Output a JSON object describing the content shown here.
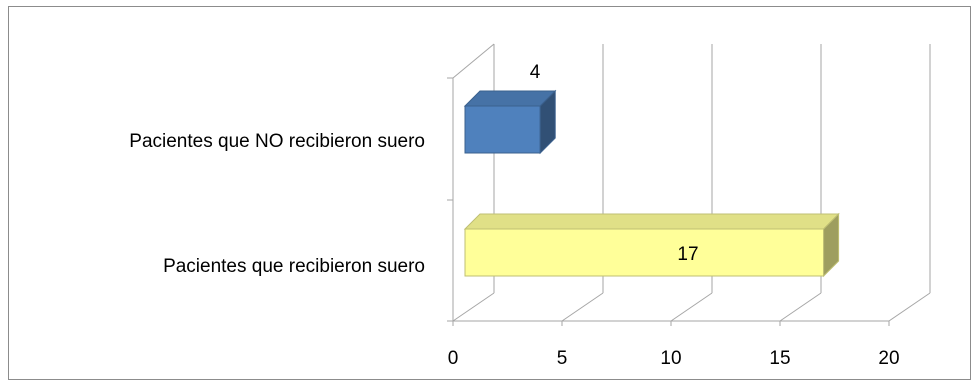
{
  "chart_data": {
    "type": "bar",
    "orientation": "horizontal",
    "style": "3d",
    "title": "",
    "xlabel": "",
    "ylabel": "",
    "categories": [
      "Pacientes que  NO recibieron suero",
      "Pacientes que recibieron suero"
    ],
    "values": [
      4,
      17
    ],
    "data_labels": [
      "4",
      "17"
    ],
    "bar_colors": [
      "#4f81bd",
      "#ffff99"
    ],
    "x_ticks": [
      "0",
      "5",
      "10",
      "15",
      "20"
    ],
    "xlim": [
      0,
      20
    ],
    "grid": true,
    "legend": "none"
  }
}
